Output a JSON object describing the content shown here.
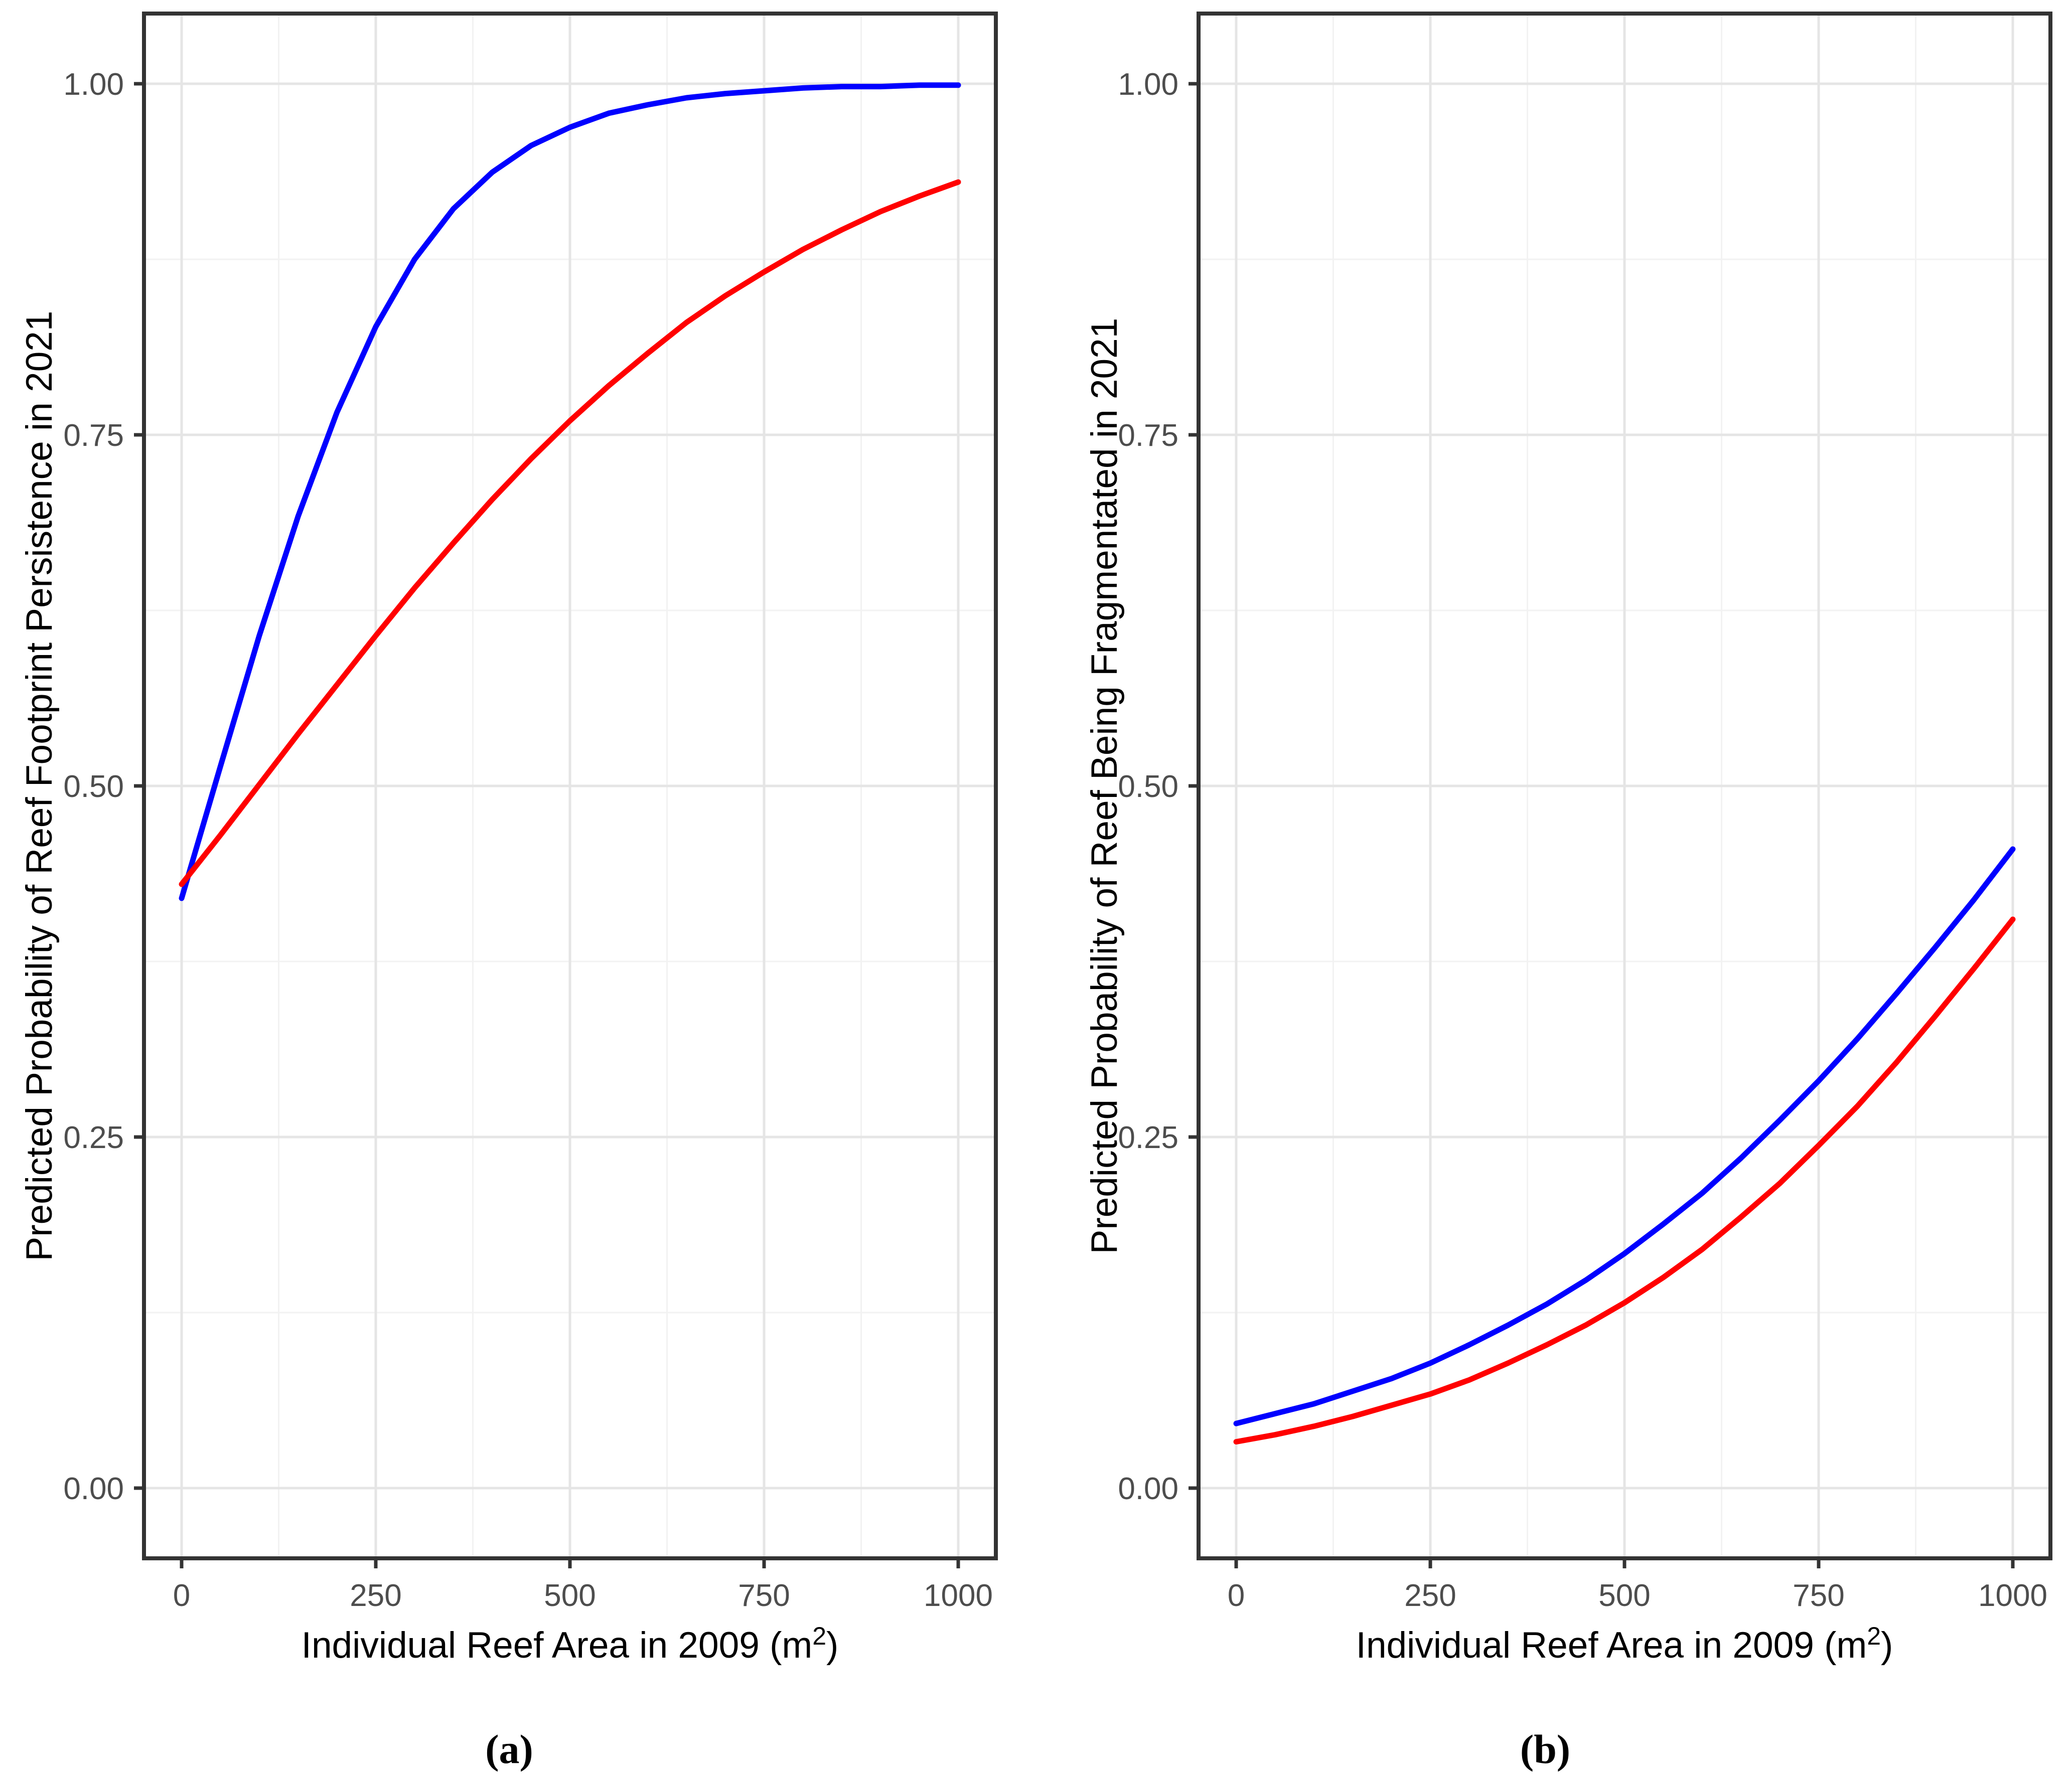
{
  "figure": {
    "background": "#ffffff",
    "panels": [
      {
        "id": "a",
        "caption": "(a)",
        "y_axis_title": "Predicted Probability of Reef Footprint Persistence in 2021",
        "x_title_prefix": "Individual Reef Area in 2009 (m",
        "x_title_sup": "2",
        "x_title_suffix": ")"
      },
      {
        "id": "b",
        "caption": "(b)",
        "y_axis_title": "Predicted Probability of Reef Being Fragmentated in 2021",
        "x_title_prefix": "Individual Reef Area in 2009 (m",
        "x_title_sup": "2",
        "x_title_suffix": ")"
      }
    ]
  },
  "colors": {
    "blue_line": "#0000ff",
    "red_line": "#ff0000",
    "panel_border": "#333333",
    "grid_major": "#e5e5e5",
    "grid_minor": "#f2f2f2",
    "tick_text": "#4d4d4d"
  },
  "chart_data": [
    {
      "panel": "a",
      "type": "line",
      "title": "",
      "xlabel": "Individual Reef Area in 2009 (m²)",
      "ylabel": "Predicted Probability of Reef Footprint Persistence in 2021",
      "xlim": [
        0,
        1000
      ],
      "ylim": [
        0,
        1
      ],
      "grid": "major+minor",
      "legend": "none",
      "x_ticks": [
        {
          "label": "0",
          "value": 0
        },
        {
          "label": "250",
          "value": 250
        },
        {
          "label": "500",
          "value": 500
        },
        {
          "label": "750",
          "value": 750
        },
        {
          "label": "1000",
          "value": 1000
        }
      ],
      "y_ticks": [
        {
          "label": "0.00",
          "value": 0
        },
        {
          "label": "0.25",
          "value": 0.25
        },
        {
          "label": "0.50",
          "value": 0.5
        },
        {
          "label": "0.75",
          "value": 0.75
        },
        {
          "label": "1.00",
          "value": 1
        }
      ],
      "x": [
        0,
        50,
        100,
        150,
        200,
        250,
        300,
        350,
        400,
        450,
        500,
        550,
        600,
        650,
        700,
        750,
        800,
        850,
        900,
        950,
        1000
      ],
      "series": [
        {
          "name": "blue-line",
          "color": "#0000ff",
          "values": [
            0.42,
            0.514,
            0.607,
            0.692,
            0.766,
            0.827,
            0.875,
            0.911,
            0.937,
            0.956,
            0.969,
            0.979,
            0.985,
            0.99,
            0.993,
            0.995,
            0.997,
            0.998,
            0.998,
            0.999,
            0.999
          ]
        },
        {
          "name": "red-line",
          "color": "#ff0000",
          "values": [
            0.43,
            0.465,
            0.501,
            0.537,
            0.572,
            0.607,
            0.641,
            0.673,
            0.704,
            0.733,
            0.76,
            0.785,
            0.808,
            0.83,
            0.849,
            0.866,
            0.882,
            0.896,
            0.909,
            0.92,
            0.93
          ]
        }
      ]
    },
    {
      "panel": "b",
      "type": "line",
      "title": "",
      "xlabel": "Individual Reef Area in 2009 (m²)",
      "ylabel": "Predicted Probability of Reef Being Fragmentated in 2021",
      "xlim": [
        0,
        1000
      ],
      "ylim": [
        0,
        1
      ],
      "grid": "major+minor",
      "legend": "none",
      "x_ticks": [
        {
          "label": "0",
          "value": 0
        },
        {
          "label": "250",
          "value": 250
        },
        {
          "label": "500",
          "value": 500
        },
        {
          "label": "750",
          "value": 750
        },
        {
          "label": "1000",
          "value": 1000
        }
      ],
      "y_ticks": [
        {
          "label": "0.00",
          "value": 0
        },
        {
          "label": "0.25",
          "value": 0.25
        },
        {
          "label": "0.50",
          "value": 0.5
        },
        {
          "label": "0.75",
          "value": 0.75
        },
        {
          "label": "1.00",
          "value": 1
        }
      ],
      "x": [
        0,
        50,
        100,
        150,
        200,
        250,
        300,
        350,
        400,
        450,
        500,
        550,
        600,
        650,
        700,
        750,
        800,
        850,
        900,
        950,
        1000
      ],
      "series": [
        {
          "name": "blue-line",
          "color": "#0000ff",
          "values": [
            0.046,
            0.053,
            0.06,
            0.069,
            0.078,
            0.089,
            0.102,
            0.116,
            0.131,
            0.148,
            0.167,
            0.188,
            0.21,
            0.235,
            0.262,
            0.29,
            0.32,
            0.352,
            0.385,
            0.419,
            0.455
          ]
        },
        {
          "name": "red-line",
          "color": "#ff0000",
          "values": [
            0.033,
            0.038,
            0.044,
            0.051,
            0.059,
            0.067,
            0.077,
            0.089,
            0.102,
            0.116,
            0.132,
            0.15,
            0.17,
            0.193,
            0.217,
            0.244,
            0.272,
            0.303,
            0.336,
            0.37,
            0.405
          ]
        }
      ]
    }
  ]
}
